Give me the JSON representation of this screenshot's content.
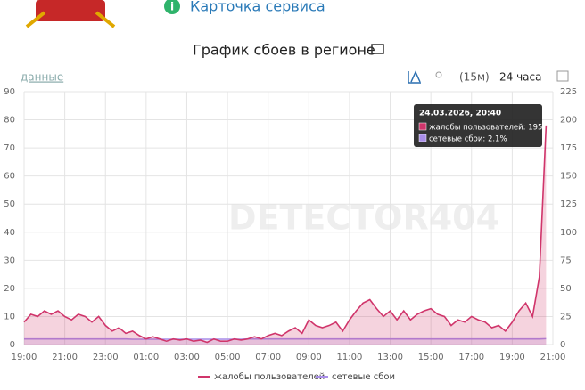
{
  "header": {
    "service_card": "Карточка сервиса"
  },
  "controls": {
    "data_link": "данные",
    "interval": "(15м)",
    "period": "24 часа"
  },
  "chart_data": {
    "type": "line",
    "title": "График сбоев в регионе",
    "watermark": "DETECTOR404",
    "categories": [
      "19:00",
      null,
      null,
      null,
      null,
      null,
      "21:00",
      null,
      null,
      null,
      null,
      null,
      "23:00",
      null,
      null,
      null,
      null,
      null,
      "01:00",
      null,
      null,
      null,
      null,
      null,
      "03:00",
      null,
      null,
      null,
      null,
      null,
      "05:00",
      null,
      null,
      null,
      null,
      null,
      "07:00",
      null,
      null,
      null,
      null,
      null,
      "09:00",
      null,
      null,
      null,
      null,
      null,
      "11:00",
      null,
      null,
      null,
      null,
      null,
      "13:00",
      null,
      null,
      null,
      null,
      null,
      "15:00",
      null,
      null,
      null,
      null,
      null,
      "17:00",
      null,
      null,
      null,
      null,
      null,
      "19:00",
      null,
      null,
      null,
      null,
      null,
      "21:00"
    ],
    "series": [
      {
        "name": "жалобы пользователей",
        "color": "#d0356b",
        "axis": "y2",
        "values": [
          20,
          27,
          25,
          30,
          27,
          30,
          25,
          22,
          27,
          25,
          20,
          25,
          17,
          12,
          15,
          10,
          12,
          8,
          5,
          7,
          5,
          3,
          5,
          4,
          5,
          3,
          4,
          2,
          5,
          3,
          3,
          5,
          4,
          5,
          7,
          5,
          8,
          10,
          8,
          12,
          15,
          10,
          22,
          17,
          15,
          17,
          20,
          12,
          22,
          30,
          37,
          40,
          32,
          25,
          30,
          22,
          30,
          22,
          27,
          30,
          32,
          27,
          25,
          17,
          22,
          20,
          25,
          22,
          20,
          15,
          17,
          12,
          20,
          30,
          37,
          25,
          60,
          195,
          null
        ]
      },
      {
        "name": "сетевые сбои",
        "color": "#a98ee8",
        "axis": "y",
        "values": [
          2,
          2,
          2,
          2,
          2,
          2,
          2,
          2,
          2,
          2,
          2,
          2,
          2,
          2,
          2,
          2,
          1.9,
          1.9,
          1.9,
          1.9,
          1.9,
          1.9,
          1.9,
          1.9,
          1.9,
          1.9,
          1.9,
          1.9,
          1.9,
          1.9,
          1.9,
          1.9,
          1.9,
          2,
          2,
          2,
          2,
          2,
          2,
          2,
          2,
          2,
          2,
          2,
          2,
          2,
          2,
          2,
          2,
          2,
          2,
          2,
          2,
          2,
          2,
          2,
          2,
          2,
          2,
          2,
          2,
          2,
          2,
          2,
          2,
          2,
          2,
          2,
          2,
          2,
          2,
          2,
          2,
          2,
          2,
          2,
          2,
          2.1,
          null
        ]
      }
    ],
    "ylim": [
      0,
      90
    ],
    "yticks": [
      0,
      10,
      20,
      30,
      40,
      50,
      60,
      70,
      80,
      90
    ],
    "y2lim": [
      0,
      225
    ],
    "y2ticks": [
      0,
      25,
      50,
      75,
      100,
      125,
      150,
      175,
      200,
      225
    ],
    "grid": true,
    "legend": "bottom",
    "tooltip": {
      "title": "24.03.2026, 20:40",
      "lines": [
        "жалобы пользователей: 195",
        "сетевые сбои: 2.1%"
      ]
    }
  }
}
